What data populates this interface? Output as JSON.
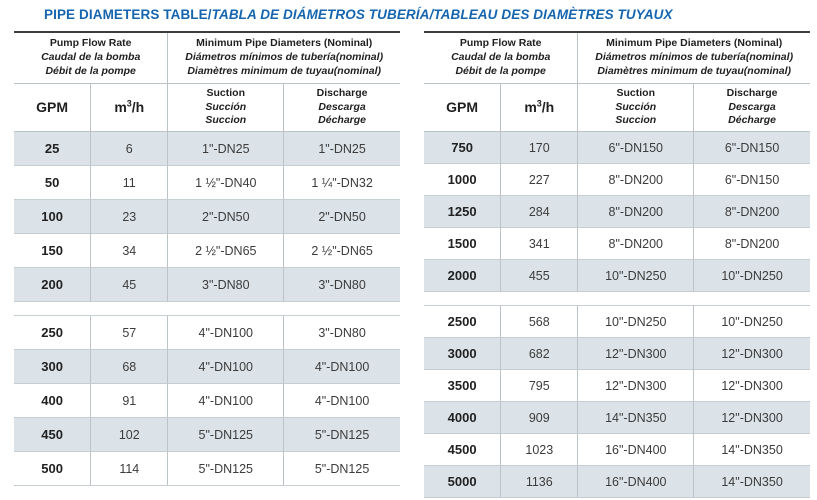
{
  "title": {
    "main": "PIPE DIAMETERS TABLE/",
    "translations": "TABLA DE DIÁMETROS TUBERÍA/TABLEAU DES DIAMÈTRES TUYAUX"
  },
  "colors": {
    "title_blue": "#1565af",
    "row_shade": "#dce3e8",
    "border_light": "#bcc3c7",
    "border_dark": "#3d3d3d",
    "text_dark": "#3c3c3c"
  },
  "header": {
    "flow": {
      "en": "Pump Flow Rate",
      "es": "Caudal de la bomba",
      "fr": "Débit de la pompe"
    },
    "diam": {
      "en": "Minimum Pipe Diameters (Nominal)",
      "es": "Diámetros mínimos de tubería(nominal)",
      "fr": "Diamètres minimum de tuyau(nominal)"
    },
    "gpm": "GPM",
    "m3h": {
      "base": "m",
      "sup": "3",
      "rest": "/h"
    },
    "suction": {
      "en": "Suction",
      "es": "Succión",
      "fr": "Succion"
    },
    "discharge": {
      "en": "Discharge",
      "es": "Descarga",
      "fr": "Décharge"
    }
  },
  "left": {
    "block1": [
      {
        "gpm": "25",
        "m3h": "6",
        "suction": "1\"-DN25",
        "discharge": "1\"-DN25"
      },
      {
        "gpm": "50",
        "m3h": "11",
        "suction": "1 ½\"-DN40",
        "discharge": "1 ¼\"-DN32"
      },
      {
        "gpm": "100",
        "m3h": "23",
        "suction": "2\"-DN50",
        "discharge": "2\"-DN50"
      },
      {
        "gpm": "150",
        "m3h": "34",
        "suction": "2 ½\"-DN65",
        "discharge": "2 ½\"-DN65"
      },
      {
        "gpm": "200",
        "m3h": "45",
        "suction": "3\"-DN80",
        "discharge": "3\"-DN80"
      }
    ],
    "block2": [
      {
        "gpm": "250",
        "m3h": "57",
        "suction": "4\"-DN100",
        "discharge": "3\"-DN80"
      },
      {
        "gpm": "300",
        "m3h": "68",
        "suction": "4\"-DN100",
        "discharge": "4\"-DN100"
      },
      {
        "gpm": "400",
        "m3h": "91",
        "suction": "4\"-DN100",
        "discharge": "4\"-DN100"
      },
      {
        "gpm": "450",
        "m3h": "102",
        "suction": "5\"-DN125",
        "discharge": "5\"-DN125"
      },
      {
        "gpm": "500",
        "m3h": "114",
        "suction": "5\"-DN125",
        "discharge": "5\"-DN125"
      }
    ]
  },
  "right": {
    "block1": [
      {
        "gpm": "750",
        "m3h": "170",
        "suction": "6\"-DN150",
        "discharge": "6\"-DN150"
      },
      {
        "gpm": "1000",
        "m3h": "227",
        "suction": "8\"-DN200",
        "discharge": "6\"-DN150"
      },
      {
        "gpm": "1250",
        "m3h": "284",
        "suction": "8\"-DN200",
        "discharge": "8\"-DN200"
      },
      {
        "gpm": "1500",
        "m3h": "341",
        "suction": "8\"-DN200",
        "discharge": "8\"-DN200"
      },
      {
        "gpm": "2000",
        "m3h": "455",
        "suction": "10\"-DN250",
        "discharge": "10\"-DN250"
      }
    ],
    "block2": [
      {
        "gpm": "2500",
        "m3h": "568",
        "suction": "10\"-DN250",
        "discharge": "10\"-DN250"
      },
      {
        "gpm": "3000",
        "m3h": "682",
        "suction": "12\"-DN300",
        "discharge": "12\"-DN300"
      },
      {
        "gpm": "3500",
        "m3h": "795",
        "suction": "12\"-DN300",
        "discharge": "12\"-DN300"
      },
      {
        "gpm": "4000",
        "m3h": "909",
        "suction": "14\"-DN350",
        "discharge": "12\"-DN300"
      },
      {
        "gpm": "4500",
        "m3h": "1023",
        "suction": "16\"-DN400",
        "discharge": "14\"-DN350"
      },
      {
        "gpm": "5000",
        "m3h": "1136",
        "suction": "16\"-DN400",
        "discharge": "14\"-DN350"
      }
    ]
  }
}
